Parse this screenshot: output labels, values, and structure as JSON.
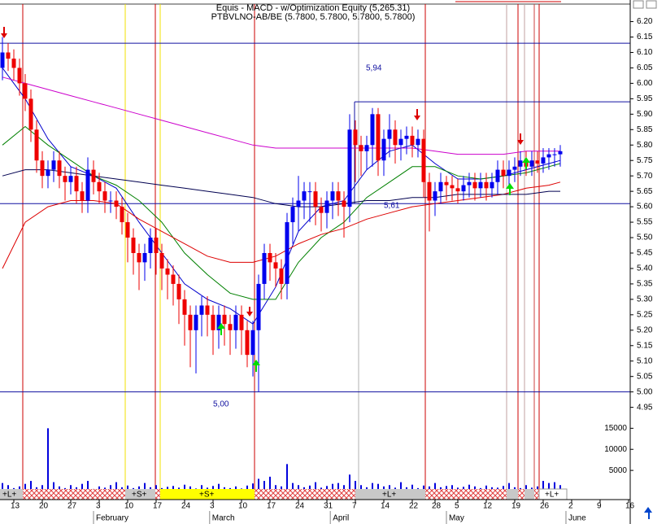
{
  "chart_data": {
    "type": "candlestick",
    "title": "Equis - MACD - w/Optimization Equity (5,265.31)",
    "subtitle": "PTBVLNO-AB/BE (5.7800, 5.7800, 5.7800, 5.7800)",
    "up_color": "#0000ee",
    "down_color": "#ee0000",
    "open": [
      6.05,
      6.1,
      6.08,
      6.05,
      6.0,
      5.95,
      5.85,
      5.75,
      5.7,
      5.72,
      5.75,
      5.7,
      5.68,
      5.7,
      5.65,
      5.62,
      5.72,
      5.68,
      5.65,
      5.62,
      5.62,
      5.6,
      5.55,
      5.5,
      5.45,
      5.42,
      5.45,
      5.5,
      5.45,
      5.4,
      5.38,
      5.35,
      5.3,
      5.25,
      5.2,
      5.25,
      5.28,
      5.25,
      5.2,
      5.25,
      5.22,
      5.2,
      5.25,
      5.2,
      5.12,
      5.2,
      5.35,
      5.45,
      5.42,
      5.4,
      5.35,
      5.55,
      5.6,
      5.62,
      5.65,
      5.65,
      5.6,
      5.58,
      5.62,
      5.65,
      5.62,
      5.6,
      5.85,
      5.8,
      5.78,
      5.8,
      5.9,
      5.75,
      5.82,
      5.85,
      5.8,
      5.82,
      5.83,
      5.8,
      5.82,
      5.68,
      5.62,
      5.65,
      5.68,
      5.67,
      5.66,
      5.65,
      5.67,
      5.68,
      5.66,
      5.68,
      5.66,
      5.68,
      5.72,
      5.7,
      5.72,
      5.73,
      5.75,
      5.73,
      5.75,
      5.74,
      5.76,
      5.77,
      5.77
    ],
    "high": [
      6.15,
      6.13,
      6.11,
      6.08,
      6.03,
      5.98,
      5.88,
      5.78,
      5.75,
      5.78,
      5.78,
      5.73,
      5.73,
      5.73,
      5.68,
      5.76,
      5.75,
      5.71,
      5.68,
      5.65,
      5.65,
      5.63,
      5.58,
      5.53,
      5.48,
      5.48,
      5.53,
      5.53,
      5.48,
      5.43,
      5.41,
      5.38,
      5.33,
      5.28,
      5.28,
      5.31,
      5.31,
      5.28,
      5.28,
      5.28,
      5.25,
      5.28,
      5.28,
      5.23,
      5.23,
      5.38,
      5.48,
      5.48,
      5.45,
      5.43,
      5.58,
      5.63,
      5.7,
      5.68,
      5.68,
      5.68,
      5.63,
      5.65,
      5.68,
      5.68,
      5.65,
      5.9,
      5.88,
      5.83,
      5.83,
      5.92,
      5.92,
      5.85,
      5.9,
      5.88,
      5.85,
      5.86,
      5.86,
      5.85,
      5.85,
      5.71,
      5.68,
      5.71,
      5.7,
      5.7,
      5.69,
      5.7,
      5.71,
      5.71,
      5.71,
      5.71,
      5.71,
      5.75,
      5.75,
      5.75,
      5.76,
      5.78,
      5.78,
      5.78,
      5.78,
      5.79,
      5.79,
      5.79,
      5.8
    ],
    "low": [
      6.01,
      6.04,
      6.01,
      5.96,
      5.91,
      5.81,
      5.71,
      5.66,
      5.66,
      5.68,
      5.66,
      5.62,
      5.64,
      5.61,
      5.58,
      5.58,
      5.64,
      5.61,
      5.58,
      5.58,
      5.56,
      5.51,
      5.42,
      5.38,
      5.33,
      5.36,
      5.4,
      5.38,
      5.33,
      5.3,
      5.28,
      5.22,
      5.15,
      5.08,
      5.06,
      5.18,
      5.18,
      5.12,
      5.14,
      5.15,
      5.12,
      5.14,
      5.12,
      5.08,
      5.05,
      5.0,
      5.3,
      5.36,
      5.34,
      5.3,
      5.3,
      5.48,
      5.52,
      5.56,
      5.55,
      5.54,
      5.52,
      5.53,
      5.56,
      5.57,
      5.5,
      5.55,
      5.68,
      5.7,
      5.72,
      5.73,
      5.7,
      5.7,
      5.76,
      5.74,
      5.75,
      5.77,
      5.76,
      5.76,
      5.63,
      5.52,
      5.57,
      5.61,
      5.62,
      5.62,
      5.61,
      5.62,
      5.63,
      5.62,
      5.63,
      5.62,
      5.63,
      5.64,
      5.66,
      5.66,
      5.68,
      5.7,
      5.7,
      5.7,
      5.71,
      5.71,
      5.72,
      5.73,
      5.73
    ],
    "close": [
      6.1,
      6.08,
      6.05,
      6.0,
      5.95,
      5.85,
      5.75,
      5.7,
      5.72,
      5.75,
      5.7,
      5.68,
      5.7,
      5.65,
      5.62,
      5.72,
      5.68,
      5.65,
      5.62,
      5.62,
      5.6,
      5.55,
      5.5,
      5.45,
      5.42,
      5.45,
      5.5,
      5.45,
      5.4,
      5.38,
      5.35,
      5.3,
      5.25,
      5.2,
      5.25,
      5.28,
      5.25,
      5.2,
      5.25,
      5.22,
      5.2,
      5.25,
      5.2,
      5.12,
      5.2,
      5.35,
      5.45,
      5.42,
      5.4,
      5.35,
      5.55,
      5.6,
      5.62,
      5.65,
      5.65,
      5.6,
      5.58,
      5.62,
      5.65,
      5.62,
      5.6,
      5.85,
      5.8,
      5.78,
      5.8,
      5.9,
      5.75,
      5.82,
      5.85,
      5.8,
      5.82,
      5.83,
      5.8,
      5.82,
      5.68,
      5.62,
      5.65,
      5.68,
      5.67,
      5.66,
      5.65,
      5.67,
      5.68,
      5.66,
      5.68,
      5.66,
      5.68,
      5.72,
      5.7,
      5.72,
      5.73,
      5.75,
      5.73,
      5.75,
      5.74,
      5.76,
      5.77,
      5.77,
      5.78
    ],
    "volume": {
      "color": "#0000dd",
      "values": [
        2000,
        1500,
        800,
        1200,
        1800,
        2500,
        1000,
        1500,
        15000,
        2200,
        1200,
        800,
        1500,
        1000,
        1800,
        2500,
        600,
        1200,
        900,
        1500,
        2200,
        1000,
        1400,
        800,
        1200,
        2000,
        1000,
        1500,
        800,
        1100,
        1300,
        900,
        1600,
        1200,
        700,
        1500,
        900,
        1300,
        1800,
        1000,
        800,
        1200,
        700,
        1400,
        1900,
        3000,
        2500,
        3500,
        1500,
        1200,
        6500,
        2000,
        1500,
        1000,
        1400,
        2200,
        900,
        1300,
        1800,
        2000,
        1500,
        4000,
        2500,
        1500,
        1000,
        2000,
        1800,
        1200,
        1500,
        900,
        2200,
        1000,
        1600,
        800,
        1400,
        1200,
        2000,
        1000,
        1300,
        1500,
        900,
        1100,
        1600,
        1200,
        800,
        1400,
        1000,
        900,
        1300,
        2000,
        1000,
        800,
        1500,
        900,
        1200,
        2500,
        2000,
        2200,
        1500
      ]
    },
    "ma_x": [
      0,
      4,
      8,
      12,
      16,
      20,
      24,
      28,
      32,
      36,
      40,
      44,
      48,
      52,
      56,
      60,
      64,
      68,
      72,
      76,
      80,
      84,
      88,
      92,
      96,
      98
    ],
    "series": [
      {
        "color": "#0000cc",
        "values": [
          6.05,
          5.95,
          5.82,
          5.73,
          5.7,
          5.66,
          5.55,
          5.45,
          5.35,
          5.3,
          5.27,
          5.22,
          5.34,
          5.52,
          5.6,
          5.62,
          5.72,
          5.78,
          5.8,
          5.74,
          5.69,
          5.69,
          5.7,
          5.72,
          5.74,
          5.75
        ]
      },
      {
        "color": "#008000",
        "values": [
          5.8,
          5.86,
          5.8,
          5.75,
          5.7,
          5.67,
          5.62,
          5.55,
          5.45,
          5.38,
          5.32,
          5.3,
          5.3,
          5.42,
          5.5,
          5.55,
          5.63,
          5.68,
          5.73,
          5.73,
          5.7,
          5.69,
          5.7,
          5.71,
          5.73,
          5.74
        ]
      },
      {
        "color": "#dd0000",
        "values": [
          5.4,
          5.55,
          5.6,
          5.62,
          5.62,
          5.61,
          5.56,
          5.52,
          5.48,
          5.44,
          5.42,
          5.42,
          5.44,
          5.48,
          5.51,
          5.53,
          5.56,
          5.58,
          5.6,
          5.61,
          5.62,
          5.63,
          5.64,
          5.66,
          5.67,
          5.68
        ]
      },
      {
        "color": "#cc00cc",
        "values": [
          6.02,
          6.0,
          5.98,
          5.96,
          5.94,
          5.92,
          5.9,
          5.88,
          5.86,
          5.84,
          5.82,
          5.8,
          5.79,
          5.79,
          5.79,
          5.79,
          5.79,
          5.79,
          5.79,
          5.78,
          5.77,
          5.77,
          5.77,
          5.78,
          5.78,
          5.78
        ]
      },
      {
        "color": "#000050",
        "values": [
          5.7,
          5.72,
          5.72,
          5.71,
          5.7,
          5.69,
          5.68,
          5.67,
          5.66,
          5.65,
          5.64,
          5.63,
          5.61,
          5.6,
          5.6,
          5.61,
          5.62,
          5.62,
          5.63,
          5.63,
          5.64,
          5.64,
          5.64,
          5.64,
          5.65,
          5.65
        ]
      }
    ],
    "levels": [
      {
        "value": 6.13
      },
      {
        "value": 5.94,
        "label": "5,94"
      },
      {
        "value": 5.61,
        "label": "5,61"
      },
      {
        "value": 5.0,
        "label": "5,00"
      }
    ],
    "xlim": [
      -0.43,
      110.29
    ],
    "ylim": [
      4.92,
      6.27
    ],
    "yticks": [
      4.95,
      {
        "value": 5,
        "label": "5.00"
      },
      5.05,
      {
        "value": 5.1,
        "label": "5.10"
      },
      5.15,
      {
        "value": 5.2,
        "label": "5.20"
      },
      5.25,
      {
        "value": 5.3,
        "label": "5.30"
      },
      5.35,
      {
        "value": 5.4,
        "label": "5.40"
      },
      5.45,
      {
        "value": 5.5,
        "label": "5.50"
      },
      5.55,
      {
        "value": 5.6,
        "label": "5.60"
      },
      5.65,
      {
        "value": 5.7,
        "label": "5.70"
      },
      5.75,
      {
        "value": 5.8,
        "label": "5.80"
      },
      5.85,
      {
        "value": 5.9,
        "label": "5.90"
      },
      5.95,
      {
        "value": 6,
        "label": "6.00"
      },
      6.05,
      {
        "value": 6.1,
        "label": "6.10"
      },
      6.15,
      {
        "value": 6.2,
        "label": "6.20"
      }
    ],
    "y2lim": [
      0,
      17000
    ],
    "y2ticks": [
      5000,
      10000,
      15000
    ],
    "xticks": [
      {
        "value": 2,
        "label": "13"
      },
      {
        "value": 7,
        "label": "20"
      },
      {
        "value": 12,
        "label": "27"
      },
      {
        "value": 17,
        "label": "3"
      },
      {
        "value": 22,
        "label": "10"
      },
      {
        "value": 27,
        "label": "17"
      },
      {
        "value": 32,
        "label": "24"
      },
      {
        "value": 37,
        "label": "3"
      },
      {
        "value": 42,
        "label": "10"
      },
      {
        "value": 47,
        "label": "17"
      },
      {
        "value": 52,
        "label": "24"
      },
      {
        "value": 57,
        "label": "31"
      },
      {
        "value": 62,
        "label": "7"
      },
      {
        "value": 67,
        "label": "14"
      },
      {
        "value": 72,
        "label": "22"
      },
      {
        "value": 76,
        "label": "28"
      },
      {
        "value": 80,
        "label": "5"
      },
      {
        "value": 85,
        "label": "12"
      },
      {
        "value": 90,
        "label": "19"
      },
      {
        "value": 95,
        "label": "26"
      },
      {
        "value": 100,
        "label": "2"
      },
      {
        "value": 105,
        "label": "9"
      },
      {
        "value": 110,
        "label": "16"
      }
    ],
    "month_ticks": [
      {
        "value": 16,
        "label": "February"
      },
      {
        "value": 36.4,
        "label": "March"
      },
      {
        "value": 57.6,
        "label": "April"
      },
      {
        "value": 78,
        "label": "May"
      },
      {
        "value": 99,
        "label": "June"
      }
    ]
  },
  "signal_band": [
    "+L+",
    "+S+",
    "+S+",
    "+L+",
    "+L+"
  ]
}
